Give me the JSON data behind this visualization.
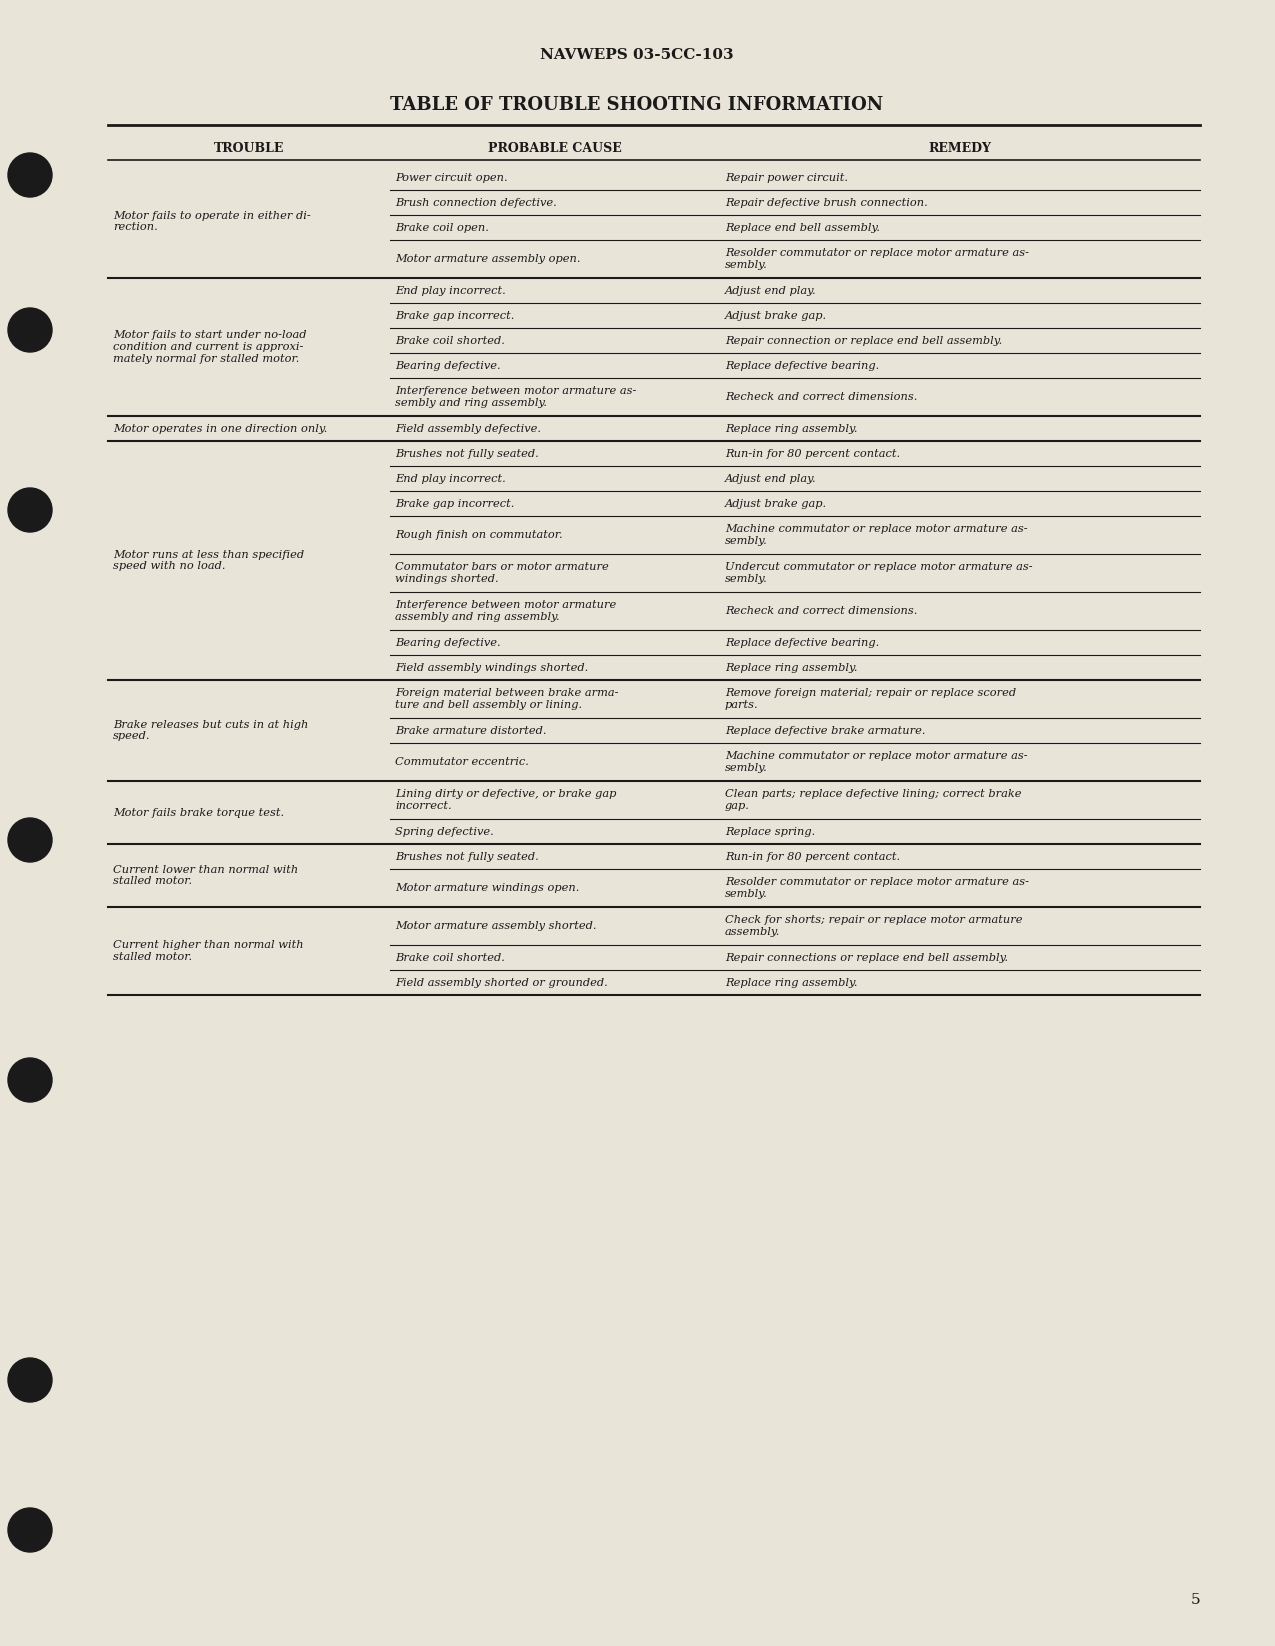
{
  "bg_color": "#e8e4d8",
  "header_doc": "NAVWEPS 03-5CC-103",
  "title": "TABLE OF TROUBLE SHOOTING INFORMATION",
  "col_headers": [
    "TROUBLE",
    "PROBABLE CAUSE",
    "REMEDY"
  ],
  "page_number": "5",
  "rows": [
    {
      "trouble": "Motor fails to operate in either di-\nrection.",
      "cause": "Power circuit open.",
      "remedy": "Repair power circuit.",
      "new_group": true
    },
    {
      "trouble": "",
      "cause": "Brush connection defective.",
      "remedy": "Repair defective brush connection.",
      "new_group": false
    },
    {
      "trouble": "",
      "cause": "Brake coil open.",
      "remedy": "Replace end bell assembly.",
      "new_group": false
    },
    {
      "trouble": "",
      "cause": "Motor armature assembly open.",
      "remedy": "Resolder commutator or replace motor armature as-\nsembly.",
      "new_group": false
    },
    {
      "trouble": "Motor fails to start under no-load\ncondition and current is approxi-\nmately normal for stalled motor.",
      "cause": "End play incorrect.",
      "remedy": "Adjust end play.",
      "new_group": true
    },
    {
      "trouble": "",
      "cause": "Brake gap incorrect.",
      "remedy": "Adjust brake gap.",
      "new_group": false
    },
    {
      "trouble": "",
      "cause": "Brake coil shorted.",
      "remedy": "Repair connection or replace end bell assembly.",
      "new_group": false
    },
    {
      "trouble": "",
      "cause": "Bearing defective.",
      "remedy": "Replace defective bearing.",
      "new_group": false
    },
    {
      "trouble": "",
      "cause": "Interference between motor armature as-\nsembly and ring assembly.",
      "remedy": "Recheck and correct dimensions.",
      "new_group": false
    },
    {
      "trouble": "Motor operates in one direction only.",
      "cause": "Field assembly defective.",
      "remedy": "Replace ring assembly.",
      "new_group": true
    },
    {
      "trouble": "Motor runs at less than specified\nspeed with no load.",
      "cause": "Brushes not fully seated.",
      "remedy": "Run-in for 80 percent contact.",
      "new_group": true
    },
    {
      "trouble": "",
      "cause": "End play incorrect.",
      "remedy": "Adjust end play.",
      "new_group": false
    },
    {
      "trouble": "",
      "cause": "Brake gap incorrect.",
      "remedy": "Adjust brake gap.",
      "new_group": false
    },
    {
      "trouble": "",
      "cause": "Rough finish on commutator.",
      "remedy": "Machine commutator or replace motor armature as-\nsembly.",
      "new_group": false
    },
    {
      "trouble": "",
      "cause": "Commutator bars or motor armature\nwindings shorted.",
      "remedy": "Undercut commutator or replace motor armature as-\nsembly.",
      "new_group": false
    },
    {
      "trouble": "",
      "cause": "Interference between motor armature\nassembly and ring assembly.",
      "remedy": "Recheck and correct dimensions.",
      "new_group": false
    },
    {
      "trouble": "",
      "cause": "Bearing defective.",
      "remedy": "Replace defective bearing.",
      "new_group": false
    },
    {
      "trouble": "",
      "cause": "Field assembly windings shorted.",
      "remedy": "Replace ring assembly.",
      "new_group": false
    },
    {
      "trouble": "Brake releases but cuts in at high\nspeed.",
      "cause": "Foreign material between brake arma-\nture and bell assembly or lining.",
      "remedy": "Remove foreign material; repair or replace scored\nparts.",
      "new_group": true
    },
    {
      "trouble": "",
      "cause": "Brake armature distorted.",
      "remedy": "Replace defective brake armature.",
      "new_group": false
    },
    {
      "trouble": "",
      "cause": "Commutator eccentric.",
      "remedy": "Machine commutator or replace motor armature as-\nsembly.",
      "new_group": false
    },
    {
      "trouble": "Motor fails brake torque test.",
      "cause": "Lining dirty or defective, or brake gap\nincorrect.",
      "remedy": "Clean parts; replace defective lining; correct brake\ngap.",
      "new_group": true
    },
    {
      "trouble": "",
      "cause": "Spring defective.",
      "remedy": "Replace spring.",
      "new_group": false
    },
    {
      "trouble": "Current lower than normal with\nstalled motor.",
      "cause": "Brushes not fully seated.",
      "remedy": "Run-in for 80 percent contact.",
      "new_group": true
    },
    {
      "trouble": "",
      "cause": "Motor armature windings open.",
      "remedy": "Resolder commutator or replace motor armature as-\nsembly.",
      "new_group": false
    },
    {
      "trouble": "Current higher than normal with\nstalled motor.",
      "cause": "Motor armature assembly shorted.",
      "remedy": "Check for shorts; repair or replace motor armature\nassembly.",
      "new_group": true
    },
    {
      "trouble": "",
      "cause": "Brake coil shorted.",
      "remedy": "Repair connections or replace end bell assembly.",
      "new_group": false
    },
    {
      "trouble": "",
      "cause": "Field assembly shorted or grounded.",
      "remedy": "Replace ring assembly.",
      "new_group": false
    }
  ]
}
